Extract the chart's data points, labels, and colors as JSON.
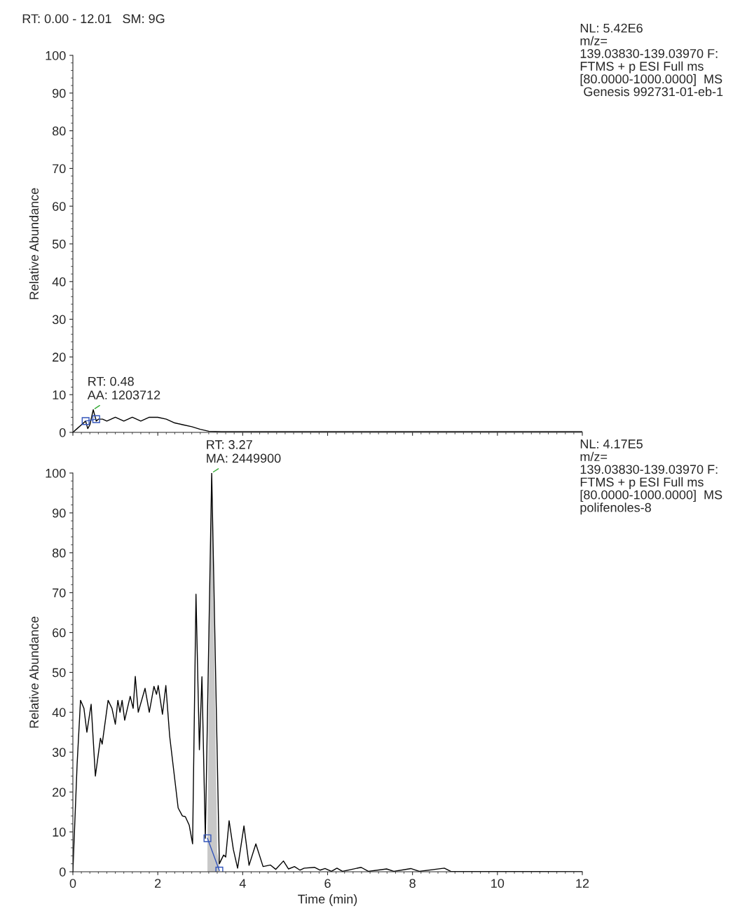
{
  "chart_data": [
    {
      "type": "line",
      "title": "RT: 0.00 - 12.01   SM: 9G",
      "ylabel": "Relative Abundance",
      "xlim": [
        0,
        12
      ],
      "ylim": [
        0,
        100
      ],
      "yticks": [
        0,
        10,
        20,
        30,
        40,
        50,
        60,
        70,
        80,
        90,
        100
      ],
      "tick_labels": "y",
      "grid": false,
      "legend": false,
      "annotations": [
        {
          "text": "RT: 0.48\nAA: 1203712",
          "x": 0.48,
          "y": 6
        },
        "NL: 5.42E6\nm/z=\n139.03830-139.03970 F:\nFTMS + p ESI Full ms\n[80.0000-1000.0000]  MS\n Genesis 992731-01-eb-1"
      ],
      "series": [
        {
          "color": "#000000",
          "marker": "none",
          "x": [
            0,
            0.1,
            0.2,
            0.3,
            0.35,
            0.4,
            0.48,
            0.55,
            0.6,
            0.7,
            0.8,
            1.0,
            1.2,
            1.4,
            1.6,
            1.8,
            2.0,
            2.2,
            2.4,
            2.6,
            2.8,
            3.0,
            3.2,
            3.5,
            4,
            5,
            6,
            8,
            10,
            12
          ],
          "values": [
            0,
            1,
            2,
            3,
            1,
            2,
            6,
            3,
            3.5,
            3.5,
            3,
            4,
            3,
            4,
            3,
            4,
            4,
            3.5,
            2.5,
            2,
            1.5,
            0.8,
            0.3,
            0.2,
            0.2,
            0.2,
            0.2,
            0.2,
            0.2,
            0.2
          ]
        },
        {
          "color": "#3355bb",
          "marker": "square",
          "x": [
            0.3,
            0.55
          ],
          "values": [
            3,
            3.5
          ]
        }
      ]
    },
    {
      "type": "line",
      "xlabel": "Time (min)",
      "ylabel": "Relative Abundance",
      "xlim": [
        0,
        12
      ],
      "xticks": [
        0,
        2,
        4,
        6,
        8,
        10,
        12
      ],
      "ylim": [
        0,
        100
      ],
      "yticks": [
        0,
        10,
        20,
        30,
        40,
        50,
        60,
        70,
        80,
        90,
        100
      ],
      "grid": false,
      "legend": false,
      "annotations": [
        {
          "text": "RT: 3.27\nMA: 2449900",
          "x": 3.27,
          "y": 100
        },
        "NL: 4.17E5\nm/z=\n139.03830-139.03970 F:\nFTMS + p ESI Full ms\n[80.0000-1000.0000]  MS\npolifenoles-8"
      ],
      "series": [
        {
          "type": "area",
          "color": "#c8c8c8",
          "x": [
            3.17,
            3.22,
            3.27,
            3.4,
            3.45
          ],
          "values": [
            8.4,
            60,
            100,
            5,
            2
          ]
        },
        {
          "color": "#000000",
          "marker": "none",
          "x": [
            0,
            0.1,
            0.18,
            0.26,
            0.33,
            0.43,
            0.53,
            0.65,
            0.69,
            0.83,
            0.92,
            1.0,
            1.06,
            1.11,
            1.16,
            1.22,
            1.35,
            1.42,
            1.47,
            1.54,
            1.7,
            1.8,
            1.91,
            1.97,
            2.01,
            2.11,
            2.19,
            2.28,
            2.38,
            2.48,
            2.58,
            2.65,
            2.74,
            2.82,
            2.9,
            2.98,
            3.04,
            3.12,
            3.27,
            3.45,
            3.55,
            3.6,
            3.68,
            3.78,
            3.88,
            4.03,
            4.15,
            4.31,
            4.48,
            4.65,
            4.78,
            4.96,
            5.08,
            5.22,
            5.35,
            5.45,
            5.69,
            5.82,
            5.94,
            6.09,
            6.22,
            6.35,
            6.79,
            6.96,
            7.39,
            7.56,
            7.96,
            8.16,
            8.75,
            8.9,
            12
          ],
          "values": [
            0,
            27,
            43,
            41,
            35,
            42,
            24,
            33.5,
            32,
            43,
            41,
            37,
            43,
            40,
            43,
            38,
            44,
            41,
            49,
            40,
            46,
            40,
            46.5,
            44.5,
            46.7,
            39.5,
            46.7,
            34,
            25,
            16,
            14,
            13.8,
            11.7,
            7,
            69.6,
            30.6,
            48.9,
            8.4,
            100,
            2,
            4.2,
            3.7,
            12.8,
            5.6,
            0.9,
            11.5,
            1.6,
            7,
            1.3,
            1.7,
            0.6,
            2.7,
            0.7,
            1.3,
            0.4,
            0.9,
            1.1,
            0.4,
            0.8,
            0.1,
            0.9,
            0.1,
            1.1,
            0.1,
            0.7,
            0.1,
            0.8,
            0.1,
            0.9,
            0.1,
            0
          ]
        },
        {
          "color": "#3355bb",
          "marker": "square",
          "x": [
            3.17,
            3.45
          ],
          "values": [
            8.4,
            0.3
          ]
        }
      ]
    }
  ]
}
